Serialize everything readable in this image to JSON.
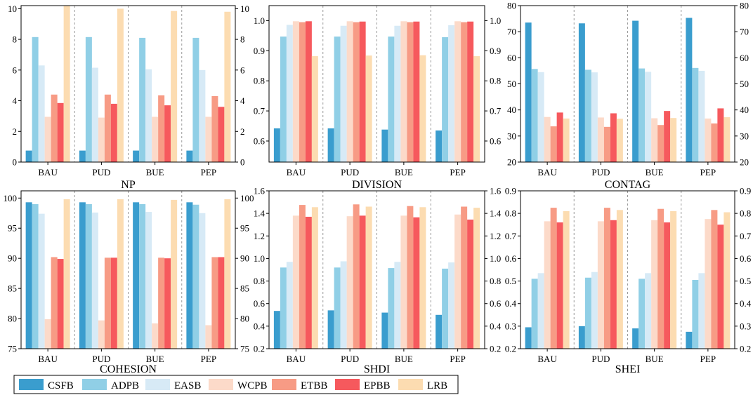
{
  "legend": [
    {
      "name": "CSFB",
      "color": "#3a9dce"
    },
    {
      "name": "ADPB",
      "color": "#90cfe6"
    },
    {
      "name": "EASB",
      "color": "#d7eaf6"
    },
    {
      "name": "WCPB",
      "color": "#fcdac9"
    },
    {
      "name": "ETBB",
      "color": "#f79b85"
    },
    {
      "name": "EPBB",
      "color": "#f6595d"
    },
    {
      "name": "LRB",
      "color": "#fcdcb1"
    }
  ],
  "chart_data": [
    {
      "type": "bar",
      "title": "NP",
      "categories": [
        "BAU",
        "PUD",
        "BUE",
        "PEP"
      ],
      "ylim": [
        0,
        10.2
      ],
      "ticks": [
        0,
        2,
        4,
        6,
        8,
        10
      ],
      "tick_labels": [
        "0",
        "2",
        "4",
        "6",
        "8",
        "10"
      ],
      "series": [
        {
          "name": "CSFB",
          "values": [
            0.75,
            0.75,
            0.75,
            0.75
          ]
        },
        {
          "name": "ADPB",
          "values": [
            8.15,
            8.15,
            8.1,
            8.1
          ]
        },
        {
          "name": "EASB",
          "values": [
            6.3,
            6.15,
            6.05,
            6.0
          ]
        },
        {
          "name": "WCPB",
          "values": [
            2.95,
            2.9,
            2.95,
            2.95
          ]
        },
        {
          "name": "ETBB",
          "values": [
            4.4,
            4.4,
            4.35,
            4.3
          ]
        },
        {
          "name": "EPBB",
          "values": [
            3.85,
            3.8,
            3.7,
            3.6
          ]
        },
        {
          "name": "LRB",
          "values": [
            10.2,
            10.0,
            9.85,
            9.8
          ]
        }
      ]
    },
    {
      "type": "bar",
      "title": "DIVISION",
      "categories": [
        "BAU",
        "PUD",
        "BUE",
        "PEP"
      ],
      "ylim": [
        0.53,
        1.05
      ],
      "ticks": [
        0.6,
        0.7,
        0.8,
        0.9,
        1.0
      ],
      "tick_labels": [
        "0.6",
        "0.7",
        "0.8",
        "0.9",
        "1.0"
      ],
      "series": [
        {
          "name": "CSFB",
          "values": [
            0.642,
            0.642,
            0.638,
            0.635
          ]
        },
        {
          "name": "ADPB",
          "values": [
            0.947,
            0.947,
            0.947,
            0.945
          ]
        },
        {
          "name": "EASB",
          "values": [
            0.986,
            0.983,
            0.983,
            0.985
          ]
        },
        {
          "name": "WCPB",
          "values": [
            0.998,
            0.998,
            0.998,
            0.998
          ]
        },
        {
          "name": "ETBB",
          "values": [
            0.995,
            0.995,
            0.995,
            0.995
          ]
        },
        {
          "name": "EPBB",
          "values": [
            0.998,
            0.997,
            0.997,
            0.997
          ]
        },
        {
          "name": "LRB",
          "values": [
            0.882,
            0.884,
            0.885,
            0.882
          ]
        }
      ]
    },
    {
      "type": "bar",
      "title": "CONTAG",
      "categories": [
        "BAU",
        "PUD",
        "BUE",
        "PEP"
      ],
      "ylim": [
        20,
        80
      ],
      "ticks": [
        20,
        30,
        40,
        50,
        60,
        70,
        80
      ],
      "tick_labels": [
        "20",
        "30",
        "40",
        "50",
        "60",
        "70",
        "80"
      ],
      "series": [
        {
          "name": "CSFB",
          "values": [
            73.5,
            73.2,
            74.2,
            75.3
          ]
        },
        {
          "name": "ADPB",
          "values": [
            55.7,
            55.4,
            55.9,
            56.1
          ]
        },
        {
          "name": "EASB",
          "values": [
            54.5,
            54.4,
            54.6,
            55.0
          ]
        },
        {
          "name": "WCPB",
          "values": [
            37.3,
            37.1,
            36.8,
            36.7
          ]
        },
        {
          "name": "ETBB",
          "values": [
            33.7,
            33.5,
            34.2,
            34.8
          ]
        },
        {
          "name": "EPBB",
          "values": [
            39.0,
            38.7,
            39.6,
            40.6
          ]
        },
        {
          "name": "LRB",
          "values": [
            36.7,
            36.6,
            36.9,
            37.2
          ]
        }
      ]
    },
    {
      "type": "bar",
      "title": "COHESION",
      "categories": [
        "BAU",
        "PUD",
        "BUE",
        "PEP"
      ],
      "ylim": [
        75,
        101.2
      ],
      "ticks": [
        75,
        80,
        85,
        90,
        95,
        100
      ],
      "tick_labels": [
        "75",
        "80",
        "85",
        "90",
        "95",
        "100"
      ],
      "series": [
        {
          "name": "CSFB",
          "values": [
            99.3,
            99.3,
            99.3,
            99.3
          ]
        },
        {
          "name": "ADPB",
          "values": [
            99.0,
            99.0,
            99.0,
            98.9
          ]
        },
        {
          "name": "EASB",
          "values": [
            97.4,
            97.6,
            97.7,
            97.5
          ]
        },
        {
          "name": "WCPB",
          "values": [
            79.9,
            79.7,
            79.2,
            78.9
          ]
        },
        {
          "name": "ETBB",
          "values": [
            90.2,
            90.1,
            90.1,
            90.2
          ]
        },
        {
          "name": "EPBB",
          "values": [
            89.9,
            90.1,
            90.0,
            90.2
          ]
        },
        {
          "name": "LRB",
          "values": [
            99.8,
            99.8,
            99.7,
            99.8
          ]
        }
      ]
    },
    {
      "type": "bar",
      "title": "SHDI",
      "categories": [
        "BAU",
        "PUD",
        "BUE",
        "PEP"
      ],
      "ylim": [
        0.2,
        1.6
      ],
      "ticks": [
        0.2,
        0.4,
        0.6,
        0.8,
        1.0,
        1.2,
        1.4,
        1.6
      ],
      "tick_labels": [
        "0.2",
        "0.4",
        "0.6",
        "0.8",
        "1.0",
        "1.2",
        "1.4",
        "1.6"
      ],
      "series": [
        {
          "name": "CSFB",
          "values": [
            0.535,
            0.54,
            0.52,
            0.5
          ]
        },
        {
          "name": "ADPB",
          "values": [
            0.92,
            0.92,
            0.915,
            0.91
          ]
        },
        {
          "name": "EASB",
          "values": [
            0.97,
            0.975,
            0.97,
            0.965
          ]
        },
        {
          "name": "WCPB",
          "values": [
            1.38,
            1.375,
            1.38,
            1.39
          ]
        },
        {
          "name": "ETBB",
          "values": [
            1.475,
            1.48,
            1.465,
            1.46
          ]
        },
        {
          "name": "EPBB",
          "values": [
            1.37,
            1.38,
            1.365,
            1.345
          ]
        },
        {
          "name": "LRB",
          "values": [
            1.455,
            1.46,
            1.455,
            1.45
          ]
        }
      ]
    },
    {
      "type": "bar",
      "title": "SHEI",
      "categories": [
        "BAU",
        "PUD",
        "BUE",
        "PEP"
      ],
      "ylim": [
        0.2,
        0.9
      ],
      "ticks": [
        0.2,
        0.3,
        0.4,
        0.5,
        0.6,
        0.7,
        0.8,
        0.9
      ],
      "tick_labels": [
        "0.2",
        "0.3",
        "0.4",
        "0.5",
        "0.6",
        "0.7",
        "0.8",
        "0.9"
      ],
      "series": [
        {
          "name": "CSFB",
          "values": [
            0.295,
            0.3,
            0.29,
            0.275
          ]
        },
        {
          "name": "ADPB",
          "values": [
            0.51,
            0.515,
            0.51,
            0.505
          ]
        },
        {
          "name": "EASB",
          "values": [
            0.535,
            0.54,
            0.535,
            0.535
          ]
        },
        {
          "name": "WCPB",
          "values": [
            0.765,
            0.765,
            0.77,
            0.775
          ]
        },
        {
          "name": "ETBB",
          "values": [
            0.825,
            0.825,
            0.82,
            0.815
          ]
        },
        {
          "name": "EPBB",
          "values": [
            0.76,
            0.77,
            0.76,
            0.75
          ]
        },
        {
          "name": "LRB",
          "values": [
            0.81,
            0.815,
            0.81,
            0.805
          ]
        }
      ]
    }
  ]
}
